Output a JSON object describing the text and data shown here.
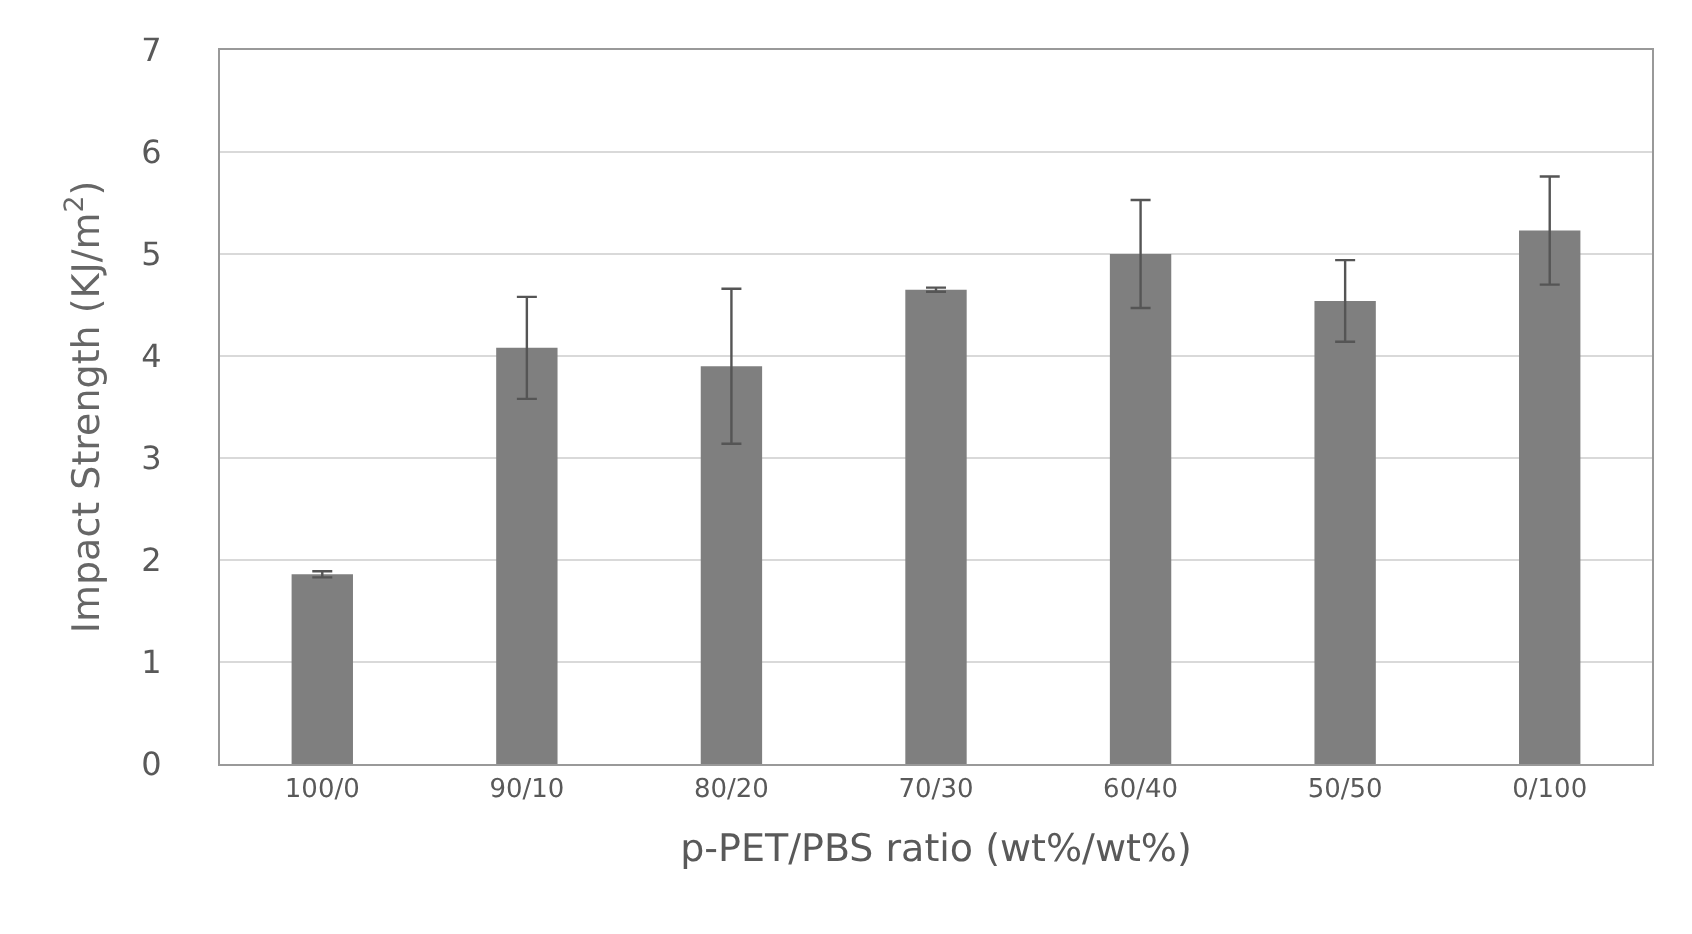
{
  "chart_data": {
    "type": "bar",
    "xlabel": "p-PET/PBS ratio (wt%/wt%)",
    "ylabel": "Impact Strength (KJ/m$^{2}$)",
    "categories": [
      "100/0",
      "90/10",
      "80/20",
      "70/30",
      "60/40",
      "50/50",
      "0/100"
    ],
    "values": [
      1.86,
      4.08,
      3.9,
      4.65,
      5.0,
      4.54,
      5.23
    ],
    "errors": [
      0.03,
      0.5,
      0.76,
      0.02,
      0.53,
      0.4,
      0.53
    ],
    "color": "#7f7f7f",
    "ylim": [
      0,
      7
    ],
    "yticks": [
      0,
      1,
      2,
      3,
      4,
      5,
      6,
      7
    ],
    "grid": "y",
    "legend": false
  }
}
